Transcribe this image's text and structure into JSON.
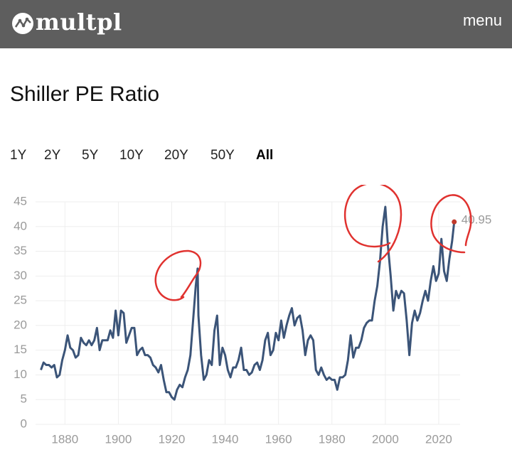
{
  "header": {
    "logo": "multpl",
    "menu": "menu"
  },
  "title": "Shiller PE Ratio",
  "ranges": [
    "1Y",
    "2Y",
    "5Y",
    "10Y",
    "20Y",
    "50Y",
    "All"
  ],
  "active_range": "All",
  "chart_data": {
    "type": "line",
    "color": "#3b5478",
    "marker_color": "#c0392b",
    "grid": true,
    "xlim": [
      1869,
      2028
    ],
    "ylim": [
      0,
      45
    ],
    "xticks": [
      1880,
      1900,
      1920,
      1940,
      1960,
      1980,
      2000,
      2020
    ],
    "yticks": [
      0,
      5,
      10,
      15,
      20,
      25,
      30,
      35,
      40,
      45
    ],
    "x": [
      1871,
      1872,
      1873,
      1874,
      1875,
      1876,
      1877,
      1878,
      1879,
      1880,
      1881,
      1882,
      1883,
      1884,
      1885,
      1886,
      1887,
      1888,
      1889,
      1890,
      1891,
      1892,
      1893,
      1894,
      1895,
      1896,
      1897,
      1898,
      1899,
      1900,
      1901,
      1902,
      1903,
      1904,
      1905,
      1906,
      1907,
      1908,
      1909,
      1910,
      1911,
      1912,
      1913,
      1914,
      1915,
      1916,
      1917,
      1918,
      1919,
      1920,
      1921,
      1922,
      1923,
      1924,
      1925,
      1926,
      1927,
      1928,
      1929,
      1929.7,
      1930,
      1931,
      1932,
      1933,
      1934,
      1935,
      1936,
      1937,
      1938,
      1939,
      1940,
      1941,
      1942,
      1943,
      1944,
      1945,
      1946,
      1947,
      1948,
      1949,
      1950,
      1951,
      1952,
      1953,
      1954,
      1955,
      1956,
      1957,
      1958,
      1959,
      1960,
      1961,
      1962,
      1963,
      1964,
      1965,
      1966,
      1967,
      1968,
      1969,
      1970,
      1971,
      1972,
      1973,
      1974,
      1975,
      1976,
      1977,
      1978,
      1979,
      1980,
      1981,
      1982,
      1983,
      1984,
      1985,
      1986,
      1987,
      1988,
      1989,
      1990,
      1991,
      1992,
      1993,
      1994,
      1995,
      1996,
      1997,
      1998,
      1999,
      2000,
      2001,
      2002,
      2003,
      2004,
      2005,
      2006,
      2007,
      2008,
      2009,
      2010,
      2011,
      2012,
      2013,
      2014,
      2015,
      2016,
      2017,
      2018,
      2019,
      2020,
      2021,
      2022,
      2023,
      2024,
      2025,
      2025.8
    ],
    "values": [
      11,
      12.5,
      12,
      12,
      11.5,
      12,
      9.5,
      10,
      13,
      15,
      18,
      15.5,
      15,
      13.5,
      14,
      17.5,
      16.5,
      16,
      17,
      16,
      17,
      19.5,
      15,
      17,
      17,
      17,
      19,
      17.5,
      23,
      18,
      23,
      22.5,
      16.5,
      18,
      19.5,
      19.5,
      14,
      15,
      15.5,
      14,
      14,
      13.5,
      12,
      11.5,
      10.5,
      12,
      9,
      6.5,
      6.5,
      5.5,
      5,
      7,
      8,
      7.5,
      9.5,
      11,
      14,
      21,
      28,
      31.5,
      22,
      14,
      9,
      10,
      13,
      12,
      19,
      22,
      12,
      15.5,
      14,
      11,
      9.5,
      11.5,
      11.5,
      13,
      15.5,
      11,
      11,
      10,
      10.5,
      12,
      12.5,
      11,
      13,
      17,
      18.5,
      14,
      15,
      18.5,
      17,
      21,
      17.5,
      20,
      22,
      23.5,
      20,
      21.5,
      22,
      19,
      14,
      17,
      18,
      17,
      11,
      10,
      11.5,
      10,
      9,
      9.5,
      9,
      9,
      7,
      9.5,
      9.5,
      10,
      13,
      18,
      13.5,
      15.5,
      15.5,
      17,
      19.5,
      20.5,
      21,
      21,
      25,
      28,
      33,
      40,
      44,
      36,
      30,
      23,
      27,
      25.5,
      27,
      26.5,
      21,
      14,
      20.5,
      23,
      21,
      22.5,
      25,
      27,
      25,
      29,
      32,
      29,
      30.5,
      37.5,
      31,
      29,
      33.5,
      37,
      40.95
    ]
  }
}
